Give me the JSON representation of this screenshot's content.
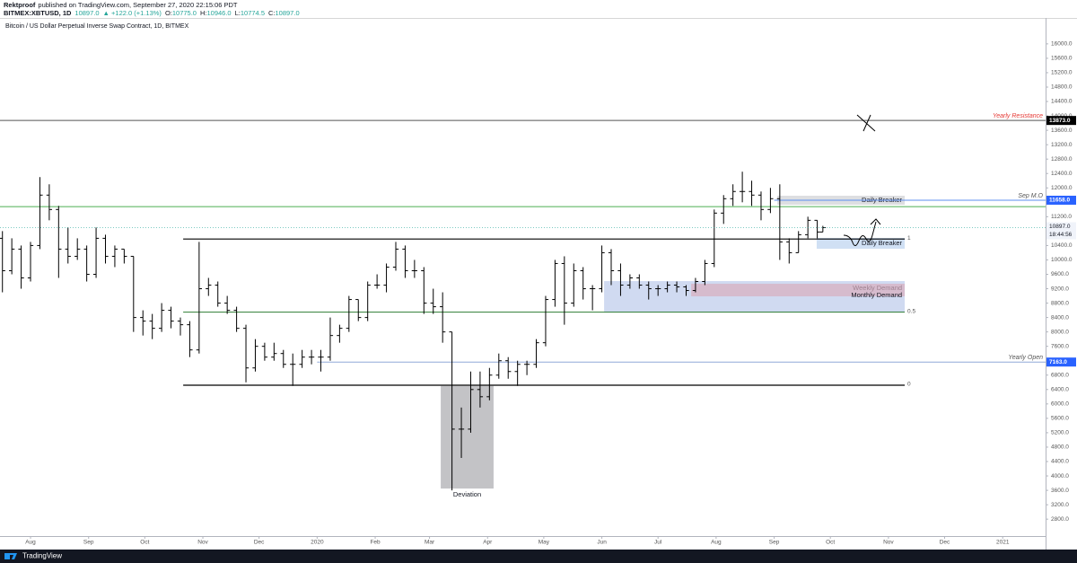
{
  "header": {
    "author": "Rektproof",
    "published": "published on TradingView.com, September 27, 2020 22:15:06 PDT",
    "symbol": "BITMEX:XBTUSD, 1D",
    "price": "10897.0",
    "change": "▲ +122.0 (+1.13%)",
    "ohlc": [
      {
        "key": "O:",
        "value": "10775.0"
      },
      {
        "key": "H:",
        "value": "10946.0"
      },
      {
        "key": "L:",
        "value": "10774.5"
      },
      {
        "key": "C:",
        "value": "10897.0"
      }
    ]
  },
  "footer": {
    "brand": "TradingView"
  },
  "chart_data": {
    "type": "ohlc",
    "title": "Bitcoin / US Dollar Perpetual Inverse Swap Contract, 1D, BITMEX",
    "color": "#000000",
    "x": [
      -15,
      -10,
      -5,
      0,
      5,
      10,
      15,
      20,
      25,
      30,
      35,
      40,
      45,
      50,
      55,
      60,
      65,
      70,
      75,
      80,
      85,
      90,
      95,
      100,
      105,
      110,
      115,
      120,
      125,
      130,
      135,
      140,
      145,
      150,
      155,
      160,
      165,
      170,
      175,
      180,
      185,
      190,
      195,
      200,
      205,
      210,
      215,
      220,
      225,
      230,
      235,
      240,
      245,
      250,
      255,
      260,
      265,
      270,
      275,
      280,
      285,
      290,
      295,
      300,
      305,
      310,
      315,
      320,
      325,
      330,
      335,
      340,
      345,
      350,
      355,
      360,
      365,
      370,
      375,
      380,
      385,
      390,
      395,
      400,
      405,
      410,
      415,
      420,
      423
    ],
    "open": [
      10600,
      9700,
      10300,
      9500,
      10400,
      11800,
      11400,
      10300,
      10100,
      10300,
      9600,
      10600,
      10100,
      10300,
      10100,
      8400,
      8300,
      8100,
      8600,
      8300,
      8200,
      7500,
      9200,
      9300,
      8800,
      8600,
      8100,
      7000,
      7600,
      7300,
      7400,
      7100,
      7100,
      7300,
      7300,
      7300,
      7900,
      8100,
      8900,
      8400,
      9300,
      9300,
      9800,
      10300,
      9700,
      9700,
      8800,
      8700,
      8000,
      5300,
      5300,
      6400,
      6200,
      6800,
      7200,
      6900,
      7100,
      7100,
      7700,
      8900,
      9900,
      8800,
      9700,
      9200,
      9200,
      10200,
      9700,
      9300,
      9500,
      9300,
      9200,
      9200,
      9300,
      9250,
      9150,
      9400,
      9900,
      11300,
      11700,
      11900,
      11900,
      11800,
      11400,
      11700,
      10500,
      10200,
      10700,
      11100,
      10775
    ],
    "high": [
      10800,
      10600,
      10400,
      10500,
      12300,
      12100,
      11500,
      10900,
      10600,
      10400,
      10900,
      10700,
      10400,
      10300,
      10100,
      8600,
      8500,
      8800,
      8700,
      8400,
      8300,
      10500,
      9500,
      9400,
      9000,
      8700,
      8200,
      7800,
      7700,
      7700,
      7500,
      7400,
      7500,
      7500,
      7500,
      8400,
      8200,
      9000,
      8900,
      9400,
      9600,
      9900,
      10500,
      10400,
      10000,
      9800,
      9200,
      9100,
      8000,
      5900,
      6900,
      6900,
      7000,
      7400,
      7300,
      7200,
      7200,
      7800,
      9000,
      10000,
      10100,
      9900,
      9800,
      9300,
      10400,
      10300,
      9900,
      9600,
      9600,
      9400,
      9300,
      9400,
      9400,
      9300,
      9500,
      10000,
      11400,
      11800,
      12100,
      12450,
      12200,
      11900,
      12000,
      12100,
      10600,
      10800,
      11200,
      11100,
      10946
    ],
    "low": [
      9100,
      9600,
      9200,
      9400,
      10300,
      11100,
      9500,
      9900,
      10000,
      9400,
      9500,
      9900,
      9800,
      9900,
      8000,
      7900,
      7800,
      8000,
      8100,
      7900,
      7300,
      7400,
      9000,
      8700,
      8500,
      8000,
      6600,
      6900,
      7200,
      7200,
      7000,
      6500,
      7000,
      7100,
      6900,
      7200,
      7700,
      8000,
      8300,
      8300,
      9200,
      9100,
      9700,
      9500,
      9500,
      8500,
      8500,
      7700,
      3600,
      4500,
      5200,
      5900,
      6100,
      6700,
      6700,
      6500,
      6800,
      7000,
      7600,
      8700,
      8200,
      8700,
      8900,
      8600,
      9100,
      9300,
      9000,
      9200,
      9200,
      8900,
      9000,
      9100,
      9100,
      9000,
      9100,
      9300,
      9800,
      11000,
      11500,
      11600,
      11500,
      11100,
      11300,
      10000,
      9900,
      10200,
      10600,
      10600,
      10774.5
    ],
    "close": [
      9700,
      10300,
      9500,
      10400,
      11800,
      11400,
      10300,
      10100,
      10300,
      9600,
      10600,
      10100,
      10300,
      10100,
      8400,
      8300,
      8100,
      8600,
      8300,
      8200,
      7500,
      9200,
      9300,
      8800,
      8600,
      8100,
      7000,
      7600,
      7300,
      7400,
      7100,
      7100,
      7300,
      7300,
      7300,
      7900,
      8100,
      8900,
      8400,
      9300,
      9300,
      9800,
      10300,
      9700,
      9700,
      8800,
      8700,
      8000,
      5300,
      5300,
      6400,
      6200,
      6800,
      7200,
      6900,
      7100,
      7100,
      7700,
      8900,
      9900,
      8800,
      9700,
      9200,
      9200,
      10200,
      9700,
      9300,
      9500,
      9300,
      9200,
      9200,
      9300,
      9250,
      9150,
      9400,
      9900,
      11300,
      11700,
      11900,
      11900,
      11800,
      11400,
      11700,
      10500,
      10200,
      10700,
      11100,
      10775,
      10897
    ],
    "xlim": [
      -16.3,
      541.9
    ],
    "xticks": [
      {
        "value": 0,
        "label": "Aug"
      },
      {
        "value": 31,
        "label": "Sep"
      },
      {
        "value": 61,
        "label": "Oct"
      },
      {
        "value": 92,
        "label": "Nov"
      },
      {
        "value": 122,
        "label": "Dec"
      },
      {
        "value": 153,
        "label": "2020"
      },
      {
        "value": 184,
        "label": "Feb"
      },
      {
        "value": 213,
        "label": "Mar"
      },
      {
        "value": 244,
        "label": "Apr"
      },
      {
        "value": 274,
        "label": "May"
      },
      {
        "value": 305,
        "label": "Jun"
      },
      {
        "value": 335,
        "label": "Jul"
      },
      {
        "value": 366,
        "label": "Aug"
      },
      {
        "value": 397,
        "label": "Sep"
      },
      {
        "value": 427,
        "label": "Oct"
      },
      {
        "value": 458,
        "label": "Nov"
      },
      {
        "value": 488,
        "label": "Dec"
      },
      {
        "value": 519,
        "label": "2021"
      }
    ],
    "ylim": [
      2330,
      16720
    ],
    "yticks": [
      {
        "value": 2800,
        "label": "2800.0"
      },
      {
        "value": 3200,
        "label": "3200.0"
      },
      {
        "value": 3600,
        "label": "3600.0"
      },
      {
        "value": 4000,
        "label": "4000.0"
      },
      {
        "value": 4400,
        "label": "4400.0"
      },
      {
        "value": 4800,
        "label": "4800.0"
      },
      {
        "value": 5200,
        "label": "5200.0"
      },
      {
        "value": 5600,
        "label": "5600.0"
      },
      {
        "value": 6000,
        "label": "6000.0"
      },
      {
        "value": 6400,
        "label": "6400.0"
      },
      {
        "value": 6800,
        "label": "6800.0"
      },
      {
        "value": 7200,
        "label": "7200.0"
      },
      {
        "value": 7600,
        "label": "7600.0"
      },
      {
        "value": 8000,
        "label": "8000.0"
      },
      {
        "value": 8400,
        "label": "8400.0"
      },
      {
        "value": 8800,
        "label": "8800.0"
      },
      {
        "value": 9200,
        "label": "9200.0"
      },
      {
        "value": 9600,
        "label": "9600.0"
      },
      {
        "value": 10000,
        "label": "10000.0"
      },
      {
        "value": 10400,
        "label": "10400.0"
      },
      {
        "value": 10800,
        "label": "10800.0"
      },
      {
        "value": 11200,
        "label": "11200.0"
      },
      {
        "value": 11600,
        "label": "11600.0"
      },
      {
        "value": 12000,
        "label": "12000.0"
      },
      {
        "value": 12400,
        "label": "12400.0"
      },
      {
        "value": 12800,
        "label": "12800.0"
      },
      {
        "value": 13200,
        "label": "13200.0"
      },
      {
        "value": 13600,
        "label": "13600.0"
      },
      {
        "value": 14000,
        "label": "14000.0"
      },
      {
        "value": 14400,
        "label": "14400.0"
      },
      {
        "value": 14800,
        "label": "14800.0"
      },
      {
        "value": 15200,
        "label": "15200.0"
      },
      {
        "value": 15600,
        "label": "15600.0"
      },
      {
        "value": 16000,
        "label": "16000.0"
      }
    ],
    "last_price": {
      "value": 10897,
      "label": "10897.0",
      "countdown": "18:44:56"
    },
    "levels": [
      {
        "value": 13873,
        "color": "#555555",
        "x": [
          -16.3,
          541.9
        ],
        "label": "Yearly Resistance",
        "label_color": "#e53935",
        "axis_label": "13873.0",
        "axis_color": "#000000"
      },
      {
        "value": 11658,
        "color": "#5b8def",
        "x": [
          397,
          541.9
        ],
        "label": "Sep M.O",
        "label_color": "#555555",
        "axis_label": "11658.0",
        "axis_color": "#2962ff"
      },
      {
        "value": 11480,
        "color": "#4caf50",
        "x": [
          -16.3,
          541.9
        ]
      },
      {
        "value": 10580,
        "color": "#000000",
        "x": [
          81.5,
          466.7
        ],
        "label": "1",
        "label_color": "#555555"
      },
      {
        "value": 8550,
        "color": "#2e7d32",
        "x": [
          81.5,
          466.7
        ],
        "label": "0.5",
        "label_color": "#555555"
      },
      {
        "value": 6520,
        "color": "#000000",
        "x": [
          81.5,
          466.7
        ],
        "label": "0",
        "label_color": "#555555"
      },
      {
        "value": 7163,
        "color": "#90a9d8",
        "x": [
          153,
          541.9
        ],
        "label": "Yearly Open",
        "label_color": "#555555",
        "axis_label": "7163.0",
        "axis_color": "#2962ff"
      }
    ],
    "zones": [
      {
        "x": [
          219,
          247.2
        ],
        "y": [
          3650,
          6500
        ],
        "color": "#a9aaae",
        "label": "Deviation"
      },
      {
        "x": [
          398.7,
          466.7
        ],
        "y": [
          11533,
          11783
        ],
        "color": "#cfd0d4",
        "label": "Daily Breaker"
      },
      {
        "x": [
          419.7,
          466.7
        ],
        "y": [
          10310,
          10610
        ],
        "color": "#bcd3f0",
        "label": "Daily Breaker"
      },
      {
        "x": [
          306.2,
          466.7
        ],
        "y": [
          8539,
          9412
        ],
        "color": "#bccbeb",
        "label": "Weekly Demand"
      },
      {
        "x": [
          352.7,
          466.7
        ],
        "y": [
          8988,
          9337
        ],
        "color": "#d8aebd",
        "label": "Monthly Demand"
      }
    ]
  }
}
